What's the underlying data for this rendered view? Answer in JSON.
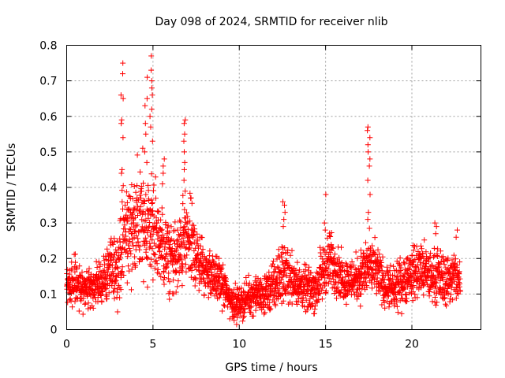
{
  "chart_data": {
    "type": "scatter",
    "title": "Day 098 of 2024, SRMTID for receiver nlib",
    "xlabel": "GPS time / hours",
    "ylabel": "SRMTID / TECUs",
    "xlim": [
      0,
      24
    ],
    "ylim": [
      0,
      0.8
    ],
    "xticks": [
      0,
      5,
      10,
      15,
      20
    ],
    "xtick_labels": [
      "0",
      "5",
      "10",
      "15",
      "20"
    ],
    "yticks": [
      0,
      0.1,
      0.2,
      0.3,
      0.4,
      0.5,
      0.6,
      0.7,
      0.8
    ],
    "ytick_labels": [
      "0",
      "0.1",
      "0.2",
      "0.3",
      "0.4",
      "0.5",
      "0.6",
      "0.7",
      "0.8"
    ],
    "grid": true,
    "marker": "plus",
    "color": "#ff0000",
    "series": [
      {
        "name": "SRMTID",
        "profile_hours": [
          0,
          0.5,
          1,
          1.5,
          2,
          2.5,
          3,
          3.3,
          3.6,
          4,
          4.3,
          4.6,
          5,
          5.3,
          5.6,
          6,
          6.5,
          6.8,
          7.2,
          7.6,
          8,
          8.5,
          9,
          9.5,
          10,
          10.5,
          11,
          11.5,
          12,
          12.5,
          13,
          13.5,
          14,
          14.5,
          15,
          15.3,
          15.7,
          16,
          16.5,
          17,
          17.5,
          18,
          18.5,
          19,
          19.5,
          20,
          20.5,
          21,
          21.5,
          22,
          22.5,
          22.8
        ],
        "profile_median": [
          0.12,
          0.13,
          0.11,
          0.12,
          0.13,
          0.17,
          0.18,
          0.27,
          0.28,
          0.3,
          0.31,
          0.3,
          0.29,
          0.25,
          0.22,
          0.2,
          0.2,
          0.26,
          0.24,
          0.2,
          0.17,
          0.15,
          0.13,
          0.08,
          0.07,
          0.09,
          0.1,
          0.1,
          0.12,
          0.16,
          0.15,
          0.12,
          0.11,
          0.12,
          0.18,
          0.19,
          0.17,
          0.14,
          0.14,
          0.15,
          0.18,
          0.16,
          0.12,
          0.11,
          0.14,
          0.16,
          0.17,
          0.15,
          0.15,
          0.14,
          0.15,
          0.13
        ],
        "profile_spread": [
          0.05,
          0.05,
          0.05,
          0.05,
          0.05,
          0.07,
          0.08,
          0.12,
          0.12,
          0.13,
          0.15,
          0.14,
          0.14,
          0.1,
          0.09,
          0.08,
          0.09,
          0.11,
          0.1,
          0.07,
          0.06,
          0.05,
          0.05,
          0.04,
          0.04,
          0.04,
          0.04,
          0.05,
          0.06,
          0.07,
          0.06,
          0.05,
          0.05,
          0.06,
          0.07,
          0.07,
          0.06,
          0.05,
          0.05,
          0.06,
          0.07,
          0.06,
          0.05,
          0.05,
          0.06,
          0.06,
          0.07,
          0.06,
          0.06,
          0.06,
          0.06,
          0.05
        ],
        "peaks": [
          {
            "x": 3.2,
            "values": [
              0.75,
              0.72,
              0.66,
              0.65,
              0.59,
              0.58,
              0.54,
              0.45,
              0.44
            ]
          },
          {
            "x": 4.6,
            "values": [
              0.71,
              0.65,
              0.63,
              0.58,
              0.55,
              0.5,
              0.47
            ]
          },
          {
            "x": 4.9,
            "values": [
              0.77,
              0.73,
              0.7,
              0.68,
              0.66,
              0.62,
              0.6,
              0.57,
              0.53
            ]
          },
          {
            "x": 5.6,
            "values": [
              0.48,
              0.46,
              0.44,
              0.41
            ]
          },
          {
            "x": 6.8,
            "values": [
              0.59,
              0.58,
              0.55,
              0.53,
              0.5,
              0.47,
              0.45,
              0.42
            ]
          },
          {
            "x": 12.6,
            "values": [
              0.36,
              0.35,
              0.33,
              0.31,
              0.29
            ]
          },
          {
            "x": 15.0,
            "values": [
              0.38,
              0.3,
              0.28
            ]
          },
          {
            "x": 17.5,
            "values": [
              0.57,
              0.56,
              0.54,
              0.52,
              0.5,
              0.48,
              0.46,
              0.42,
              0.38,
              0.33,
              0.31
            ]
          },
          {
            "x": 21.4,
            "values": [
              0.3,
              0.29,
              0.27
            ]
          },
          {
            "x": 22.6,
            "values": [
              0.28,
              0.26
            ]
          }
        ],
        "x_range": [
          0,
          22.8
        ],
        "sample_count": 2600
      }
    ]
  }
}
